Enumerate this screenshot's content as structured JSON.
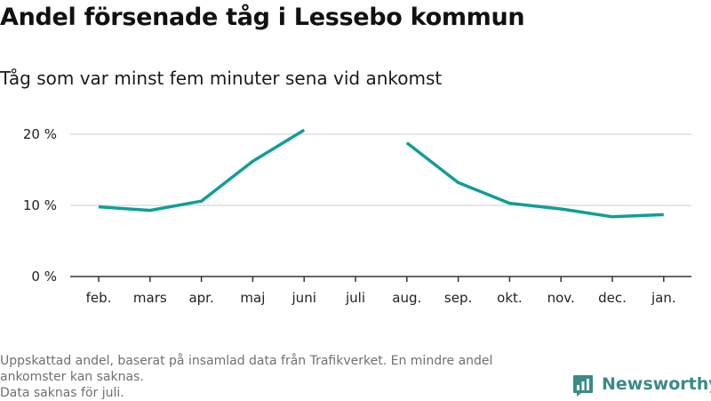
{
  "title": "Andel försenade tåg i Lessebo kommun",
  "subtitle": "Tåg som var minst fem minuter sena vid ankomst",
  "footnote": {
    "line1": "Uppskattad andel, baserat på insamlad data från Trafikverket. En mindre andel",
    "line2": "ankomster kan saknas.",
    "line3": "Data saknas för juli."
  },
  "brand": {
    "name": "Newsworthy",
    "icon": "newsworthy-logo-icon"
  },
  "colors": {
    "line": "#109e96",
    "grid": "#dddddd",
    "axis": "#333333",
    "brand": "#3a8b86"
  },
  "chart_data": {
    "type": "line",
    "title": "Andel försenade tåg i Lessebo kommun",
    "subtitle": "Tåg som var minst fem minuter sena vid ankomst",
    "xlabel": "",
    "ylabel": "",
    "categories": [
      "feb.",
      "mars",
      "apr.",
      "maj",
      "juni",
      "juli",
      "aug.",
      "sep.",
      "okt.",
      "nov.",
      "dec.",
      "jan."
    ],
    "series": [
      {
        "values": [
          9.8,
          9.3,
          10.6,
          16.2,
          20.6,
          null,
          18.8,
          13.2,
          10.3,
          9.5,
          8.4,
          8.7
        ]
      }
    ],
    "ylim": [
      0,
      22
    ],
    "yticks": [
      0,
      10,
      20
    ],
    "ytick_labels": [
      "0 %",
      "10 %",
      "20 %"
    ],
    "grid": true,
    "legend": "none"
  }
}
